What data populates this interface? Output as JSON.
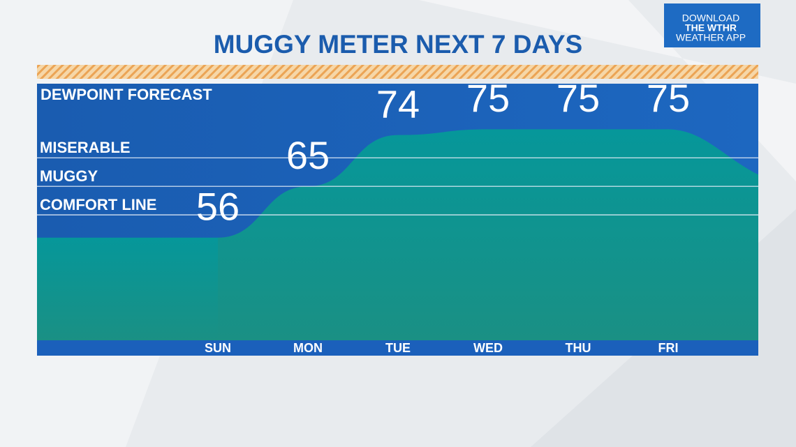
{
  "chart_data": {
    "type": "area",
    "title": "MUGGY METER NEXT 7 DAYS",
    "subtitle": "DEWPOINT FORECAST",
    "categories": [
      "SUN",
      "MON",
      "TUE",
      "WED",
      "THU",
      "FRI"
    ],
    "values": [
      56,
      65,
      74,
      75,
      75,
      75
    ],
    "color": "#0f9290",
    "ylim": [
      38,
      83
    ],
    "thresholds": [
      {
        "label": "MISERABLE",
        "value": 70
      },
      {
        "label": "MUGGY",
        "value": 65
      },
      {
        "label": "COMFORT LINE",
        "value": 60
      }
    ]
  },
  "badge": [
    "DOWNLOAD",
    "THE WTHR",
    "WEATHER APP"
  ]
}
